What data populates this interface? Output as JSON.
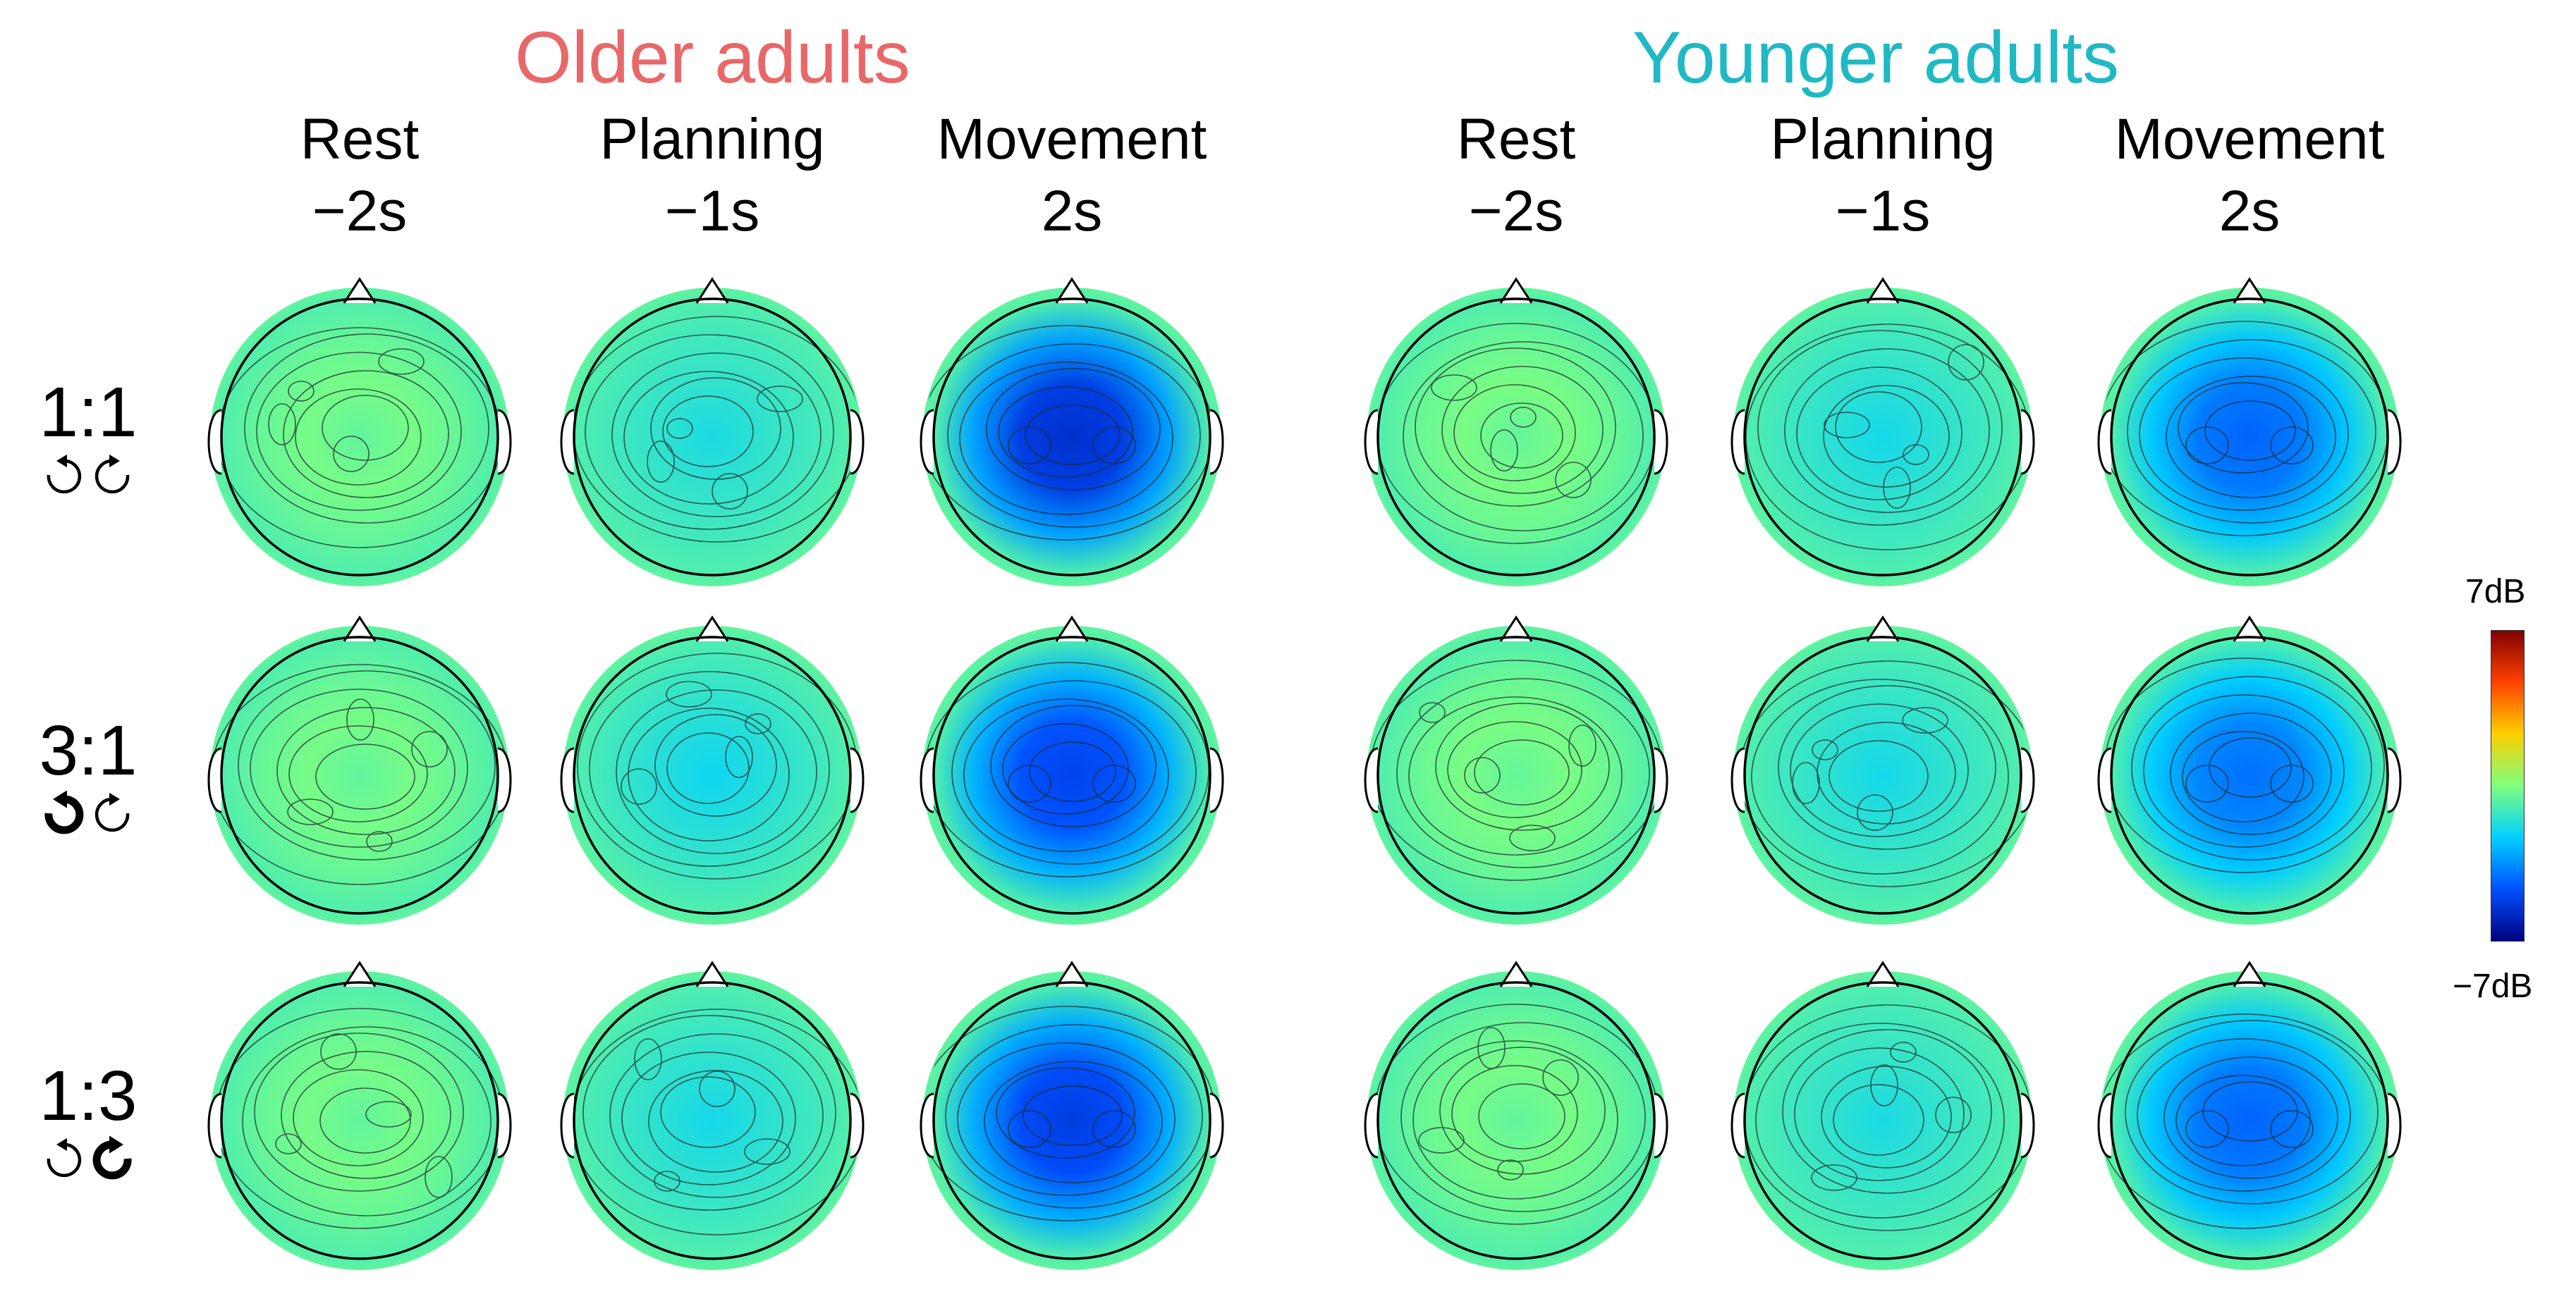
{
  "groups": [
    {
      "label": "Older adults",
      "color": "#e8686a"
    },
    {
      "label": "Younger adults",
      "color": "#1fb9c4"
    }
  ],
  "conditions": [
    {
      "label": "Rest",
      "time": "−2s"
    },
    {
      "label": "Planning",
      "time": "−1s"
    },
    {
      "label": "Movement",
      "time": "2s"
    }
  ],
  "rows": [
    {
      "ratio": "1:1",
      "icons": [
        "ccw-arrow-light",
        "cw-arrow-light"
      ]
    },
    {
      "ratio": "3:1",
      "icons": [
        "ccw-arrow-bold",
        "cw-arrow-light"
      ]
    },
    {
      "ratio": "1:3",
      "icons": [
        "ccw-arrow-light",
        "cw-arrow-bold"
      ]
    }
  ],
  "colorbar": {
    "max_label": "7dB",
    "min_label": "−7dB",
    "colormap": [
      "#00007f",
      "#0050ff",
      "#00d0ff",
      "#7fff7f",
      "#ffd000",
      "#ff4000",
      "#7f0000"
    ]
  },
  "intensity": {
    "older": [
      [
        0.05,
        0.28,
        0.95
      ],
      [
        0.05,
        0.32,
        0.85
      ],
      [
        0.05,
        0.3,
        0.88
      ]
    ],
    "younger": [
      [
        0.04,
        0.3,
        0.72
      ],
      [
        0.04,
        0.3,
        0.68
      ],
      [
        0.05,
        0.28,
        0.72
      ]
    ]
  }
}
